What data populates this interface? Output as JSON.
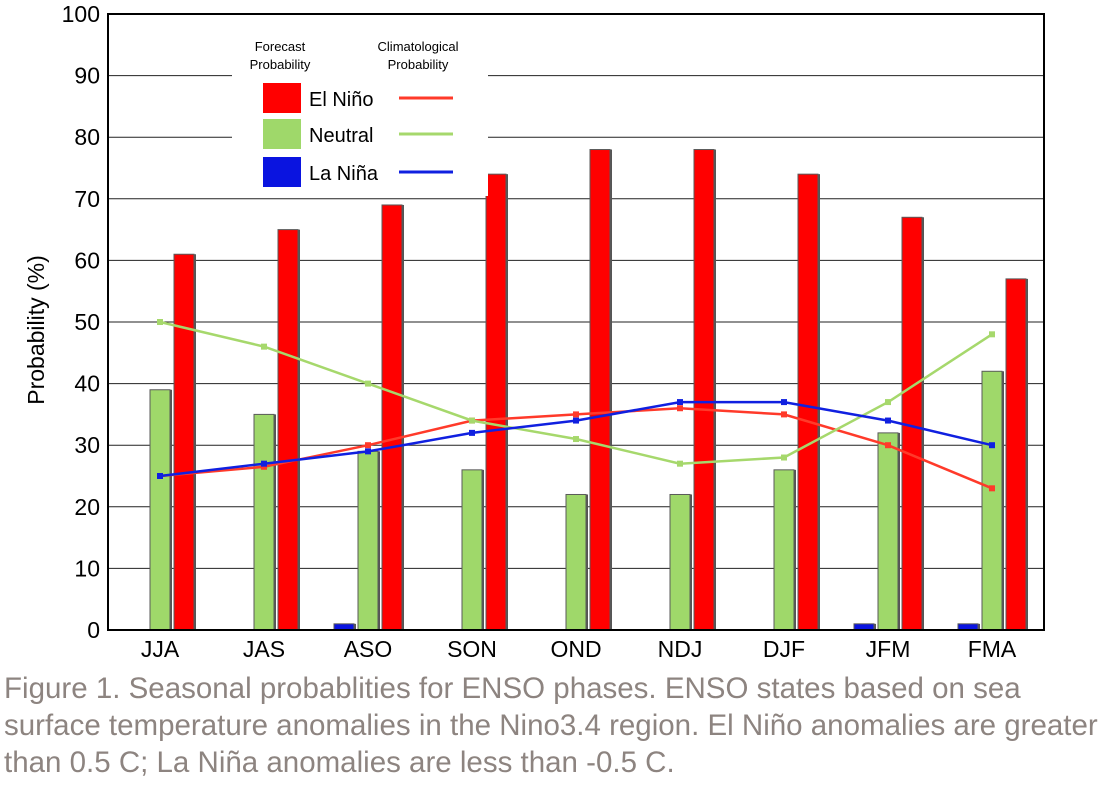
{
  "chart_data": {
    "type": "bar",
    "title": "",
    "xlabel": "",
    "ylabel": "Probability (%)",
    "ylim": [
      0,
      100
    ],
    "yticks": [
      0,
      10,
      20,
      30,
      40,
      50,
      60,
      70,
      80,
      90,
      100
    ],
    "categories": [
      "JJA",
      "JAS",
      "ASO",
      "SON",
      "OND",
      "NDJ",
      "DJF",
      "JFM",
      "FMA"
    ],
    "series": [
      {
        "name": "La Niña",
        "values": [
          0,
          0,
          1,
          0,
          0,
          0,
          0,
          1,
          1
        ],
        "color": "#0a14e0"
      },
      {
        "name": "Neutral",
        "values": [
          39,
          35,
          29,
          26,
          22,
          22,
          26,
          32,
          42
        ],
        "color": "#9fd86a"
      },
      {
        "name": "El Niño",
        "values": [
          61,
          65,
          69,
          74,
          78,
          78,
          74,
          67,
          57
        ],
        "color": "#ff0000"
      }
    ],
    "climatology": [
      {
        "name": "El Niño",
        "values": [
          25,
          26.5,
          30,
          34,
          35,
          36,
          35,
          30,
          23
        ],
        "color": "#ff3a2a"
      },
      {
        "name": "Neutral",
        "values": [
          50,
          46,
          40,
          34,
          31,
          27,
          28,
          37,
          48
        ],
        "color": "#a6d86c"
      },
      {
        "name": "La Niña",
        "values": [
          25,
          27,
          29,
          32,
          34,
          37,
          37,
          34,
          30
        ],
        "color": "#1020e0"
      }
    ],
    "legend": {
      "position": "top-left",
      "bar_header": "Forecast Probability",
      "line_header": "Climatological Probability",
      "entries": [
        "El Niño",
        "Neutral",
        "La Niña"
      ]
    },
    "grid": "horizontal"
  },
  "caption": "Figure 1. Seasonal probablities for ENSO phases. ENSO states based on sea surface temperature anomalies in the Nino3.4 region. El Niño anomalies are greater than 0.5 C; La Niña anomalies are less than -0.5 C."
}
